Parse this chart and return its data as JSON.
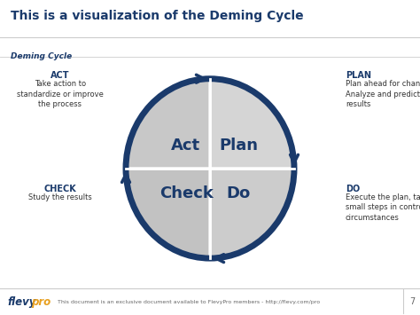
{
  "title": "This is a visualization of the Deming Cycle",
  "subtitle": "Deming Cycle",
  "title_color": "#1a3a6b",
  "subtitle_color": "#1a3a6b",
  "panel_bg_color": "#efefef",
  "white_bg": "#ffffff",
  "circle_border_color": "#1a3a6b",
  "quadrant_colors": [
    "#c8c8c8",
    "#d5d5d5",
    "#c2c2c2",
    "#cccccc"
  ],
  "quadrant_label_color": "#1a3a6b",
  "quadrant_labels": [
    "Act",
    "Plan",
    "Check",
    "Do"
  ],
  "arrow_color": "#1a3a6b",
  "label_color_bold": "#1a3a6b",
  "label_color_body": "#333333",
  "footer_flevy_color": "#1a3a6b",
  "footer_pro_color": "#e8a020",
  "footer_text": "This document is an exclusive document available to FlevyPro members - http://flevy.com/pro",
  "footer_body_color": "#666666",
  "page_number": "7",
  "line_color": "#cccccc"
}
